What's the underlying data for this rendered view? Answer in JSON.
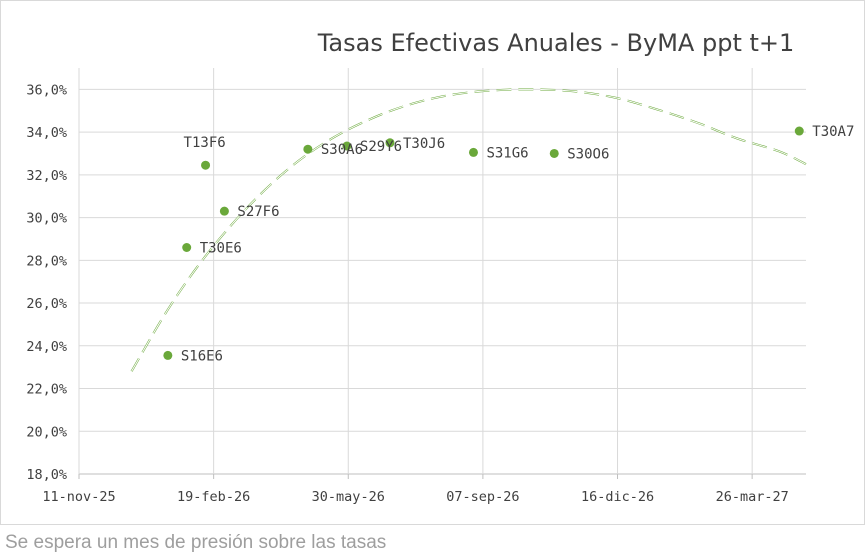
{
  "chart_data": {
    "type": "scatter",
    "title": "Tasas Efectivas Anuales - ByMA ppt t+1",
    "xlabel": "",
    "ylabel": "",
    "x_range": [
      "2025-11-11",
      "2027-05-05"
    ],
    "ylim": [
      18.0,
      37.0
    ],
    "y_ticks": [
      18.0,
      20.0,
      22.0,
      24.0,
      26.0,
      28.0,
      30.0,
      32.0,
      34.0,
      36.0
    ],
    "y_tick_labels": [
      "18,0%",
      "20,0%",
      "22,0%",
      "24,0%",
      "26,0%",
      "28,0%",
      "30,0%",
      "32,0%",
      "34,0%",
      "36,0%"
    ],
    "x_ticks": [
      "2025-11-11",
      "2026-02-19",
      "2026-05-30",
      "2026-09-07",
      "2026-12-16",
      "2027-03-26"
    ],
    "x_tick_labels": [
      "11-nov-25",
      "19-feb-26",
      "30-may-26",
      "07-sep-26",
      "16-dic-26",
      "26-mar-27"
    ],
    "grid": {
      "vertical": true,
      "horizontal": true
    },
    "points": [
      {
        "label": "S16E6",
        "x": "2026-01-16",
        "y": 23.55
      },
      {
        "label": "T30E6",
        "x": "2026-01-30",
        "y": 28.6
      },
      {
        "label": "T13F6",
        "x": "2026-02-13",
        "y": 32.45
      },
      {
        "label": "S27F6",
        "x": "2026-02-27",
        "y": 30.3
      },
      {
        "label": "S30A6",
        "x": "2026-04-30",
        "y": 33.2
      },
      {
        "label": "S29Y6",
        "x": "2026-05-29",
        "y": 33.35
      },
      {
        "label": "T30J6",
        "x": "2026-06-30",
        "y": 33.5
      },
      {
        "label": "S31G6",
        "x": "2026-08-31",
        "y": 33.05
      },
      {
        "label": "S30O6",
        "x": "2026-10-30",
        "y": 33.0
      },
      {
        "label": "T30A7",
        "x": "2027-04-30",
        "y": 34.05
      }
    ],
    "trendline": {
      "type": "polynomial",
      "order": 2,
      "style": "dashed",
      "samples": [
        {
          "x": "2025-12-20",
          "y": 22.8
        },
        {
          "x": "2026-01-16",
          "y": 25.7
        },
        {
          "x": "2026-02-13",
          "y": 28.2
        },
        {
          "x": "2026-03-15",
          "y": 30.4
        },
        {
          "x": "2026-04-15",
          "y": 32.25
        },
        {
          "x": "2026-05-15",
          "y": 33.6
        },
        {
          "x": "2026-06-15",
          "y": 34.6
        },
        {
          "x": "2026-07-15",
          "y": 35.3
        },
        {
          "x": "2026-08-15",
          "y": 35.75
        },
        {
          "x": "2026-09-15",
          "y": 35.95
        },
        {
          "x": "2026-10-15",
          "y": 36.0
        },
        {
          "x": "2026-11-15",
          "y": 35.9
        },
        {
          "x": "2026-12-15",
          "y": 35.6
        },
        {
          "x": "2027-01-15",
          "y": 35.05
        },
        {
          "x": "2027-02-15",
          "y": 34.4
        },
        {
          "x": "2027-03-15",
          "y": 33.7
        },
        {
          "x": "2027-04-15",
          "y": 33.1
        },
        {
          "x": "2027-05-05",
          "y": 32.5
        }
      ]
    },
    "colors": {
      "marker": "#6aa83a",
      "grid": "#d9d9d9",
      "text": "#404040"
    }
  },
  "caption": "Se espera un mes de presión sobre las tasas"
}
